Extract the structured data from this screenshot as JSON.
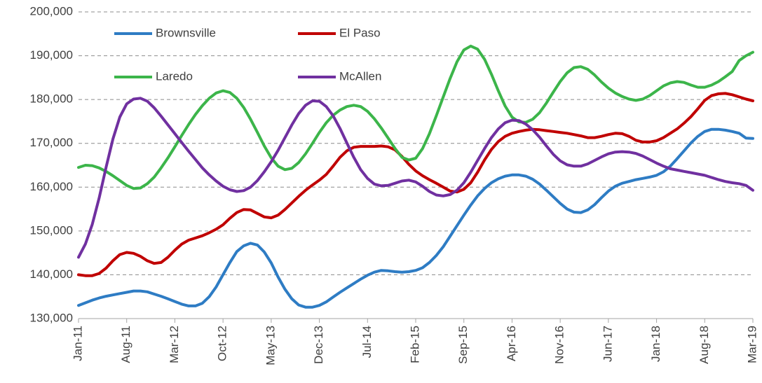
{
  "chart_data": {
    "type": "line",
    "categories": [
      "Jan-11",
      null,
      null,
      null,
      null,
      null,
      null,
      "Aug-11",
      null,
      null,
      null,
      null,
      null,
      null,
      "Mar-12",
      null,
      null,
      null,
      null,
      null,
      null,
      "Oct-12",
      null,
      null,
      null,
      null,
      null,
      null,
      "May-13",
      null,
      null,
      null,
      null,
      null,
      null,
      "Dec-13",
      null,
      null,
      null,
      null,
      null,
      null,
      "Jul-14",
      null,
      null,
      null,
      null,
      null,
      null,
      "Feb-15",
      null,
      null,
      null,
      null,
      null,
      null,
      "Sep-15",
      null,
      null,
      null,
      null,
      null,
      null,
      "Apr-16",
      null,
      null,
      null,
      null,
      null,
      null,
      "Nov-16",
      null,
      null,
      null,
      null,
      null,
      null,
      "Jun-17",
      null,
      null,
      null,
      null,
      null,
      null,
      "Jan-18",
      null,
      null,
      null,
      null,
      null,
      null,
      "Aug-18",
      null,
      null,
      null,
      null,
      null,
      null,
      "Mar-19"
    ],
    "series": [
      {
        "name": "Brownsville",
        "color": "#2e7cc4",
        "values": [
          133000,
          133600,
          134200,
          134700,
          135100,
          135400,
          135700,
          136000,
          136300,
          136300,
          136100,
          135600,
          135100,
          134500,
          133900,
          133300,
          132900,
          132900,
          133500,
          135000,
          137200,
          140000,
          142800,
          145300,
          146600,
          147200,
          146800,
          145200,
          142700,
          139500,
          136700,
          134500,
          133100,
          132600,
          132600,
          133000,
          133800,
          134900,
          136000,
          137000,
          138000,
          139000,
          139900,
          140600,
          141000,
          140900,
          140700,
          140600,
          140700,
          141000,
          141600,
          142800,
          144400,
          146400,
          148800,
          151200,
          153600,
          155900,
          158000,
          159700,
          161000,
          161900,
          162500,
          162800,
          162800,
          162500,
          161800,
          160700,
          159300,
          157800,
          156300,
          155000,
          154300,
          154200,
          154800,
          156000,
          157600,
          159100,
          160200,
          160900,
          161300,
          161700,
          162000,
          162300,
          162700,
          163500,
          164800,
          166500,
          168300,
          170100,
          171600,
          172700,
          173200,
          173200,
          173000,
          172700,
          172300,
          171200,
          171100
        ]
      },
      {
        "name": "El Paso",
        "color": "#c00000",
        "values": [
          140000,
          139800,
          139800,
          140300,
          141500,
          143200,
          144600,
          145100,
          144900,
          144200,
          143200,
          142600,
          142800,
          144000,
          145600,
          147000,
          147900,
          148400,
          148900,
          149600,
          150400,
          151400,
          152900,
          154200,
          154900,
          154800,
          154000,
          153200,
          153000,
          153600,
          154900,
          156400,
          157900,
          159300,
          160500,
          161600,
          162900,
          164800,
          166800,
          168300,
          169100,
          169300,
          169300,
          169300,
          169400,
          169200,
          168500,
          167000,
          165200,
          163700,
          162600,
          161700,
          160900,
          160000,
          159100,
          158900,
          159500,
          161000,
          163400,
          166200,
          168600,
          170400,
          171600,
          172300,
          172700,
          173000,
          173200,
          173100,
          172900,
          172700,
          172500,
          172300,
          172000,
          171700,
          171300,
          171300,
          171600,
          172000,
          172300,
          172200,
          171600,
          170700,
          170300,
          170300,
          170600,
          171300,
          172300,
          173300,
          174600,
          176100,
          177900,
          179800,
          180900,
          181300,
          181400,
          181100,
          180600,
          180100,
          179700
        ]
      },
      {
        "name": "Laredo",
        "color": "#3cb54a",
        "values": [
          164500,
          165000,
          164900,
          164400,
          163600,
          162600,
          161500,
          160400,
          159700,
          159800,
          160800,
          162300,
          164400,
          166700,
          169200,
          171800,
          174300,
          176600,
          178600,
          180300,
          181500,
          182000,
          181600,
          180300,
          178200,
          175500,
          172500,
          169400,
          166700,
          164800,
          164000,
          164300,
          165600,
          167600,
          170000,
          172500,
          174700,
          176400,
          177600,
          178400,
          178700,
          178400,
          177300,
          175600,
          173500,
          171200,
          168800,
          166800,
          166200,
          166600,
          168800,
          172200,
          176300,
          180600,
          184800,
          188600,
          191300,
          192200,
          191500,
          189200,
          185800,
          182000,
          178500,
          176000,
          174900,
          174800,
          175500,
          177000,
          179200,
          181700,
          184100,
          186100,
          187300,
          187500,
          186900,
          185600,
          184000,
          182600,
          181500,
          180700,
          180100,
          179800,
          180100,
          180900,
          182000,
          183100,
          183800,
          184100,
          183900,
          183300,
          182800,
          182800,
          183300,
          184100,
          185200,
          186400,
          188900,
          190000,
          190800
        ]
      },
      {
        "name": "McAllen",
        "color": "#7030a0",
        "values": [
          144000,
          147000,
          151500,
          157500,
          164500,
          171000,
          176000,
          179000,
          180100,
          180300,
          179600,
          178100,
          176200,
          174200,
          172200,
          170200,
          168200,
          166300,
          164400,
          162800,
          161400,
          160200,
          159400,
          159000,
          159200,
          160000,
          161500,
          163500,
          165800,
          168400,
          171300,
          174200,
          176800,
          178700,
          179700,
          179600,
          178400,
          176300,
          173400,
          170100,
          166800,
          164000,
          162000,
          160700,
          160300,
          160400,
          160900,
          161400,
          161600,
          161200,
          160200,
          159000,
          158200,
          158000,
          158300,
          159300,
          161000,
          163400,
          166100,
          168800,
          171300,
          173300,
          174700,
          175300,
          175200,
          174400,
          173100,
          171400,
          169400,
          167500,
          166000,
          165100,
          164800,
          164800,
          165300,
          166100,
          166900,
          167600,
          168000,
          168100,
          168000,
          167700,
          167100,
          166300,
          165500,
          164800,
          164200,
          163900,
          163600,
          163300,
          163000,
          162700,
          162200,
          161700,
          161300,
          161000,
          160800,
          160400,
          159300
        ]
      }
    ],
    "ylim": [
      130000,
      200000
    ],
    "yticks": [
      {
        "value": 130000,
        "label": "130,000"
      },
      {
        "value": 140000,
        "label": "140,000"
      },
      {
        "value": 150000,
        "label": "150,000"
      },
      {
        "value": 160000,
        "label": "160,000"
      },
      {
        "value": 170000,
        "label": "170,000"
      },
      {
        "value": 180000,
        "label": "180,000"
      },
      {
        "value": 190000,
        "label": "190,000"
      },
      {
        "value": 200000,
        "label": "200,000"
      }
    ],
    "grid": true,
    "legend": "top-left"
  }
}
